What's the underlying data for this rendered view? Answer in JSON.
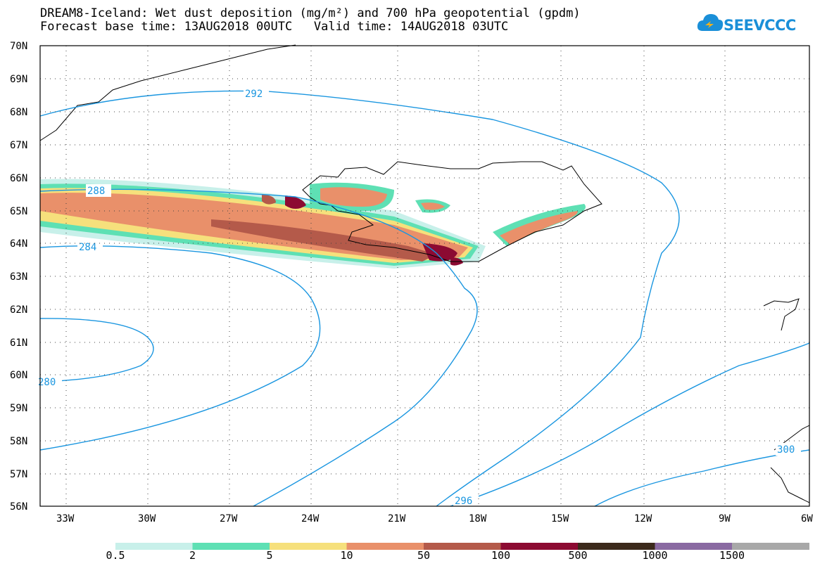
{
  "title": {
    "line1": "DREAM8-Iceland: Wet dust deposition (mg/m²) and 700 hPa geopotential (gpdm)",
    "line2": "Forecast base time: 13AUG2018 00UTC   Valid time: 14AUG2018 03UTC"
  },
  "logo": {
    "text": "SEEVCCC",
    "icon": "cloud-icon",
    "color": "#1a8fd8"
  },
  "map": {
    "lat_labels": [
      "70N",
      "69N",
      "68N",
      "67N",
      "66N",
      "65N",
      "64N",
      "63N",
      "62N",
      "61N",
      "60N",
      "59N",
      "58N",
      "57N",
      "56N"
    ],
    "lon_labels": [
      "33W",
      "30W",
      "27W",
      "24W",
      "21W",
      "18W",
      "15W",
      "12W",
      "9W",
      "6W"
    ],
    "contour_labels": [
      "292",
      "288",
      "284",
      "280",
      "296",
      "300"
    ],
    "contour_color": "#1a96e0"
  },
  "legend": {
    "bins": [
      {
        "label": "0.5",
        "color": "#c8f0ea"
      },
      {
        "label": "2",
        "color": "#5ee0b4"
      },
      {
        "label": "5",
        "color": "#f6e07c"
      },
      {
        "label": "10",
        "color": "#e9906a"
      },
      {
        "label": "50",
        "color": "#b45a4a"
      },
      {
        "label": "100",
        "color": "#8c0a32"
      },
      {
        "label": "500",
        "color": "#3c2a1c"
      },
      {
        "label": "1000",
        "color": "#8a6aa2"
      },
      {
        "label": "1500",
        "color": "#a8a8a8"
      }
    ]
  }
}
